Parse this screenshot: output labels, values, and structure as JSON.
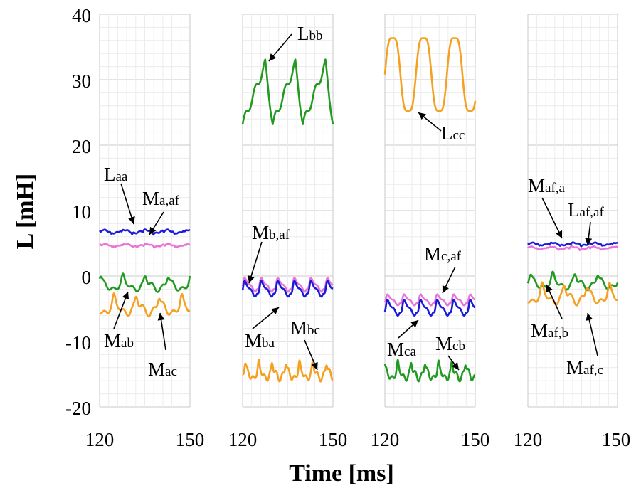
{
  "chart_data": {
    "type": "line",
    "ylabel": "L [mH]",
    "xlabel": "Time [ms]",
    "ylim": [
      -20,
      40
    ],
    "yticks": [
      "40",
      "30",
      "20",
      "10",
      "0",
      "-10",
      "-20"
    ],
    "colors": {
      "blue": "#1a1adc",
      "pink": "#e874d8",
      "green": "#229a22",
      "orange": "#f5a020"
    },
    "panels": [
      {
        "xlim": [
          120,
          150
        ],
        "xtick_labels": [
          "120",
          "150"
        ],
        "series": [
          {
            "name": "Laa",
            "color": "blue",
            "base": 6.8,
            "amp": 0.4,
            "period": 7,
            "phase": 0.5,
            "shape": "flat"
          },
          {
            "name": "Ma,af",
            "color": "pink",
            "base": 4.7,
            "amp": 0.3,
            "period": 7,
            "phase": 0.2,
            "shape": "flat"
          },
          {
            "name": "Mab",
            "color": "green",
            "base": -1.5,
            "amp": 1.2,
            "period": 7.5,
            "phase": 1.0,
            "shape": "peaky"
          },
          {
            "name": "Mac",
            "color": "orange",
            "base": -5.0,
            "amp": 1.5,
            "period": 7.5,
            "phase": 3.5,
            "shape": "peaky"
          }
        ],
        "annotations": [
          {
            "main": "L",
            "sub": "aa"
          },
          {
            "main": "M",
            "sub": "a,af"
          },
          {
            "main": "M",
            "sub": "ab"
          },
          {
            "main": "M",
            "sub": "ac"
          }
        ]
      },
      {
        "xlim": [
          120,
          150
        ],
        "xtick_labels": [
          "120",
          "150"
        ],
        "series": [
          {
            "name": "Lbb",
            "color": "green",
            "base": 27.8,
            "amp": 4.6,
            "period": 10,
            "phase": 0.0,
            "shape": "saw"
          },
          {
            "name": "Mb,af",
            "color": "pink",
            "base": -1.3,
            "amp": 1.5,
            "period": 5.5,
            "phase": 0.5,
            "shape": "dip"
          },
          {
            "name": "Mba",
            "color": "blue",
            "base": -1.9,
            "amp": 1.7,
            "period": 5.5,
            "phase": 0.5,
            "shape": "dip"
          },
          {
            "name": "Mbc",
            "color": "orange",
            "base": -15.0,
            "amp": 1.4,
            "period": 4.5,
            "phase": 0.0,
            "shape": "peaky"
          }
        ],
        "annotations": [
          {
            "main": "L",
            "sub": "bb"
          },
          {
            "main": "M",
            "sub": "b,af"
          },
          {
            "main": "M",
            "sub": "ba"
          },
          {
            "main": "M",
            "sub": "bc"
          }
        ]
      },
      {
        "xlim": [
          120,
          150
        ],
        "xtick_labels": [
          "120",
          "150"
        ],
        "series": [
          {
            "name": "Lcc",
            "color": "orange",
            "base": 30.8,
            "amp": 6.3,
            "period": 10.3,
            "phase": 0.0,
            "shape": "sine"
          },
          {
            "name": "Mc,af",
            "color": "pink",
            "base": -3.6,
            "amp": 1.2,
            "period": 5.5,
            "phase": 0.3,
            "shape": "dip"
          },
          {
            "name": "Mca",
            "color": "blue",
            "base": -4.8,
            "amp": 1.7,
            "period": 5.5,
            "phase": 0.3,
            "shape": "dip"
          },
          {
            "name": "Mcb",
            "color": "green",
            "base": -15.0,
            "amp": 1.4,
            "period": 4.5,
            "phase": 1.5,
            "shape": "peaky"
          }
        ],
        "annotations": [
          {
            "main": "L",
            "sub": "cc"
          },
          {
            "main": "M",
            "sub": "c,af"
          },
          {
            "main": "M",
            "sub": "ca"
          },
          {
            "main": "M",
            "sub": "cb"
          }
        ]
      },
      {
        "xlim": [
          120,
          150
        ],
        "xtick_labels": [
          "120",
          "150"
        ],
        "series": [
          {
            "name": "Maf,a",
            "color": "blue",
            "base": 4.9,
            "amp": 0.3,
            "period": 7,
            "phase": 0.5,
            "shape": "flat"
          },
          {
            "name": "Laf,af",
            "color": "pink",
            "base": 4.3,
            "amp": 0.3,
            "period": 7,
            "phase": 0.9,
            "shape": "flat"
          },
          {
            "name": "Maf,b",
            "color": "green",
            "base": -1.2,
            "amp": 1.2,
            "period": 7.5,
            "phase": 0.5,
            "shape": "peaky"
          },
          {
            "name": "Maf,c",
            "color": "orange",
            "base": -3.3,
            "amp": 1.5,
            "period": 7.5,
            "phase": 3.5,
            "shape": "peaky"
          }
        ],
        "annotations": [
          {
            "main": "M",
            "sub": "af,a"
          },
          {
            "main": "L",
            "sub": "af,af"
          },
          {
            "main": "M",
            "sub": "af,b"
          },
          {
            "main": "M",
            "sub": "af,c"
          }
        ]
      }
    ]
  }
}
